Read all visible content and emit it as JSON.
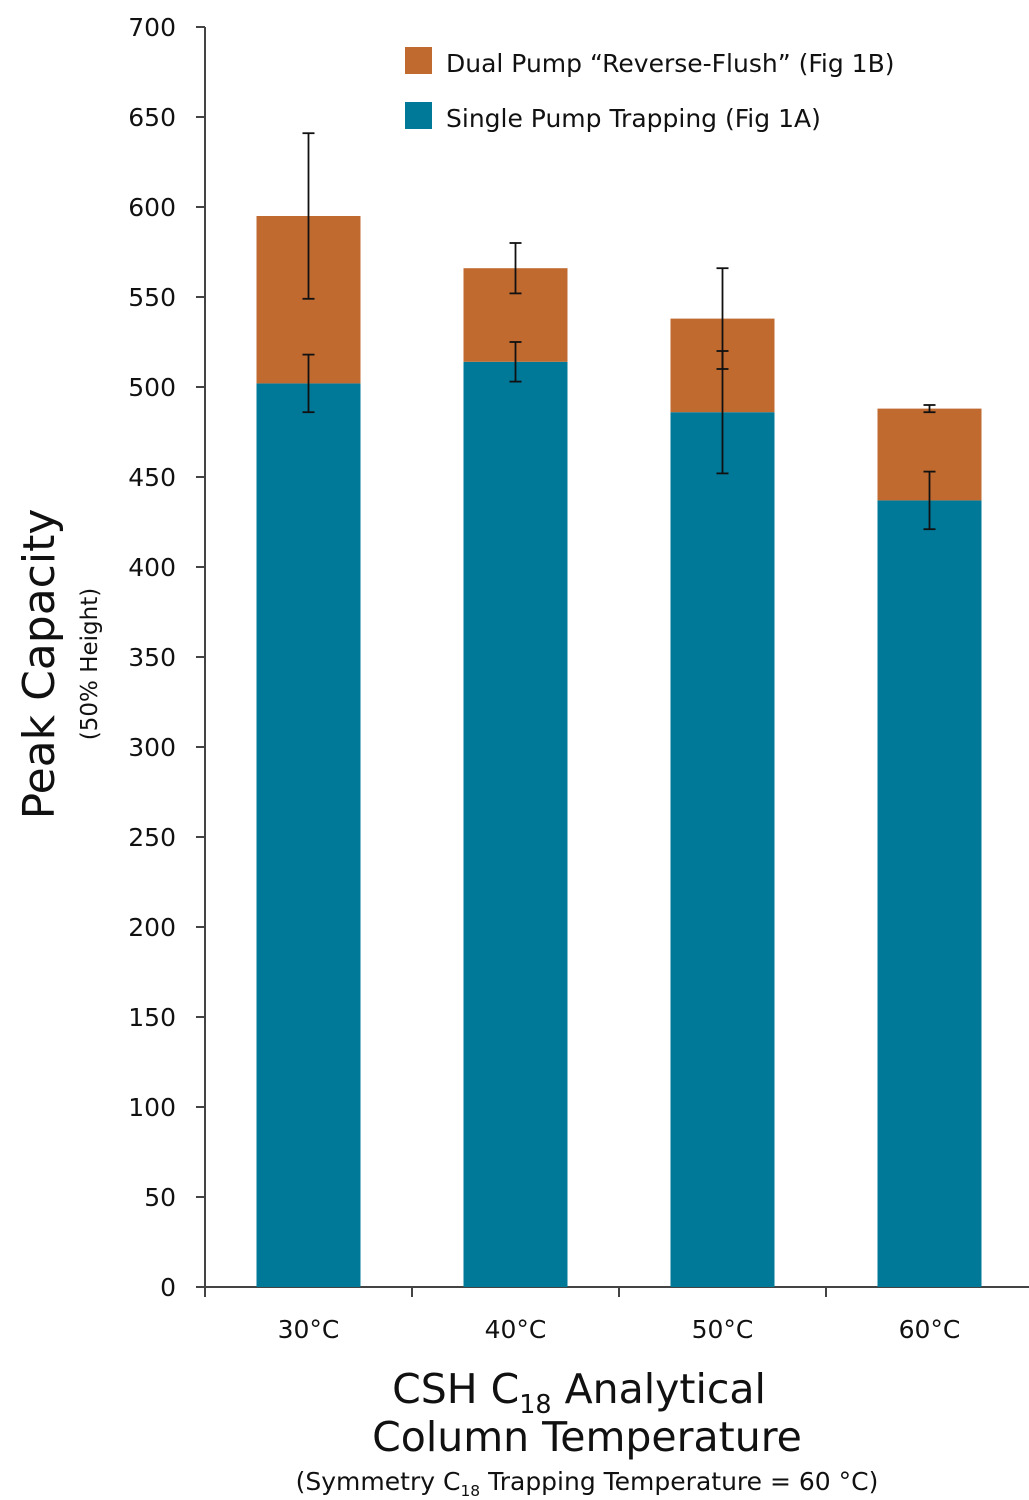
{
  "chart_data": {
    "type": "bar",
    "stacked": true,
    "categories": [
      "30°C",
      "40°C",
      "50°C",
      "60°C"
    ],
    "series": [
      {
        "name": "Single Pump Trapping (Fig 1A)",
        "color": "#007898",
        "values": [
          502,
          514,
          486,
          437
        ],
        "error": [
          16,
          11,
          34,
          16
        ]
      },
      {
        "name": "Dual Pump “Reverse-Flush” (Fig 1B)",
        "color": "#C06A30",
        "values": [
          93,
          52,
          52,
          51
        ],
        "error": [
          46,
          14,
          28,
          2
        ]
      }
    ],
    "ylim": [
      0,
      700
    ],
    "yticks": [
      0,
      50,
      100,
      150,
      200,
      250,
      300,
      350,
      400,
      450,
      500,
      550,
      600,
      650,
      700
    ],
    "ylabel": {
      "main": "Peak Capacity",
      "sub": "(50% Height)"
    },
    "xlabel": {
      "line1_prefix": "CSH C",
      "line1_subscript": "18",
      "line1_suffix": " Analytical",
      "line2": "Column Temperature",
      "note_prefix": "(Symmetry C",
      "note_subscript": "18",
      "note_suffix": " Trapping  Temperature = 60 °C)"
    },
    "legend_position": "top-right",
    "grid": false
  }
}
